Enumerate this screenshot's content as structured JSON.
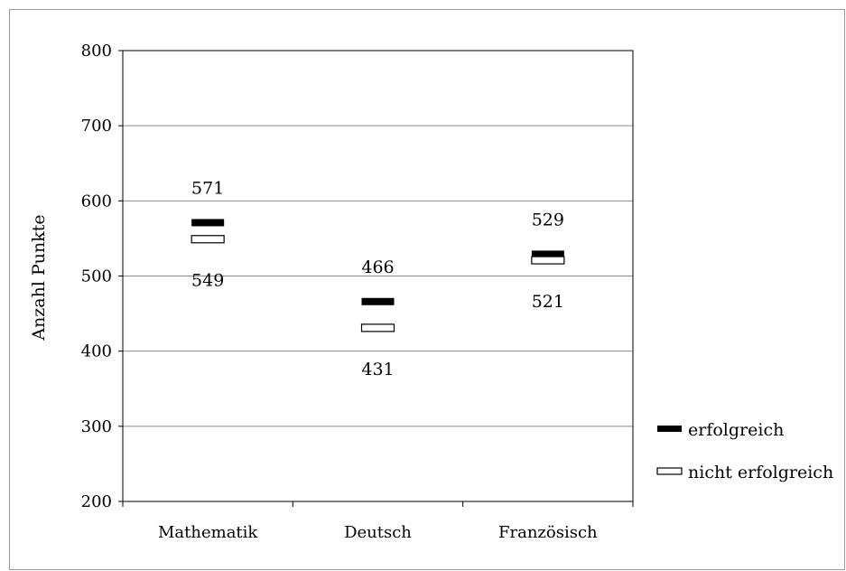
{
  "chart_data": {
    "type": "scatter",
    "title": "",
    "xlabel": "",
    "ylabel": "Anzahl Punkte",
    "ylim": [
      200,
      800
    ],
    "yticks": [
      200,
      300,
      400,
      500,
      600,
      700,
      800
    ],
    "grid": true,
    "legend_position": "right",
    "categories": [
      "Mathematik",
      "Deutsch",
      "Französisch"
    ],
    "series": [
      {
        "name": "erfolgreich",
        "values": [
          571,
          466,
          529
        ],
        "marker": "filled-bar",
        "color": "#000000"
      },
      {
        "name": "nicht erfolgreich",
        "values": [
          549,
          431,
          521
        ],
        "marker": "hollow-bar",
        "color": "#ffffff"
      }
    ],
    "data_labels": [
      {
        "category": "Mathematik",
        "series": "erfolgreich",
        "text": "571"
      },
      {
        "category": "Mathematik",
        "series": "nicht erfolgreich",
        "text": "549"
      },
      {
        "category": "Deutsch",
        "series": "erfolgreich",
        "text": "466"
      },
      {
        "category": "Deutsch",
        "series": "nicht erfolgreich",
        "text": "431"
      },
      {
        "category": "Französisch",
        "series": "erfolgreich",
        "text": "529"
      },
      {
        "category": "Französisch",
        "series": "nicht erfolgreich",
        "text": "521"
      }
    ]
  }
}
